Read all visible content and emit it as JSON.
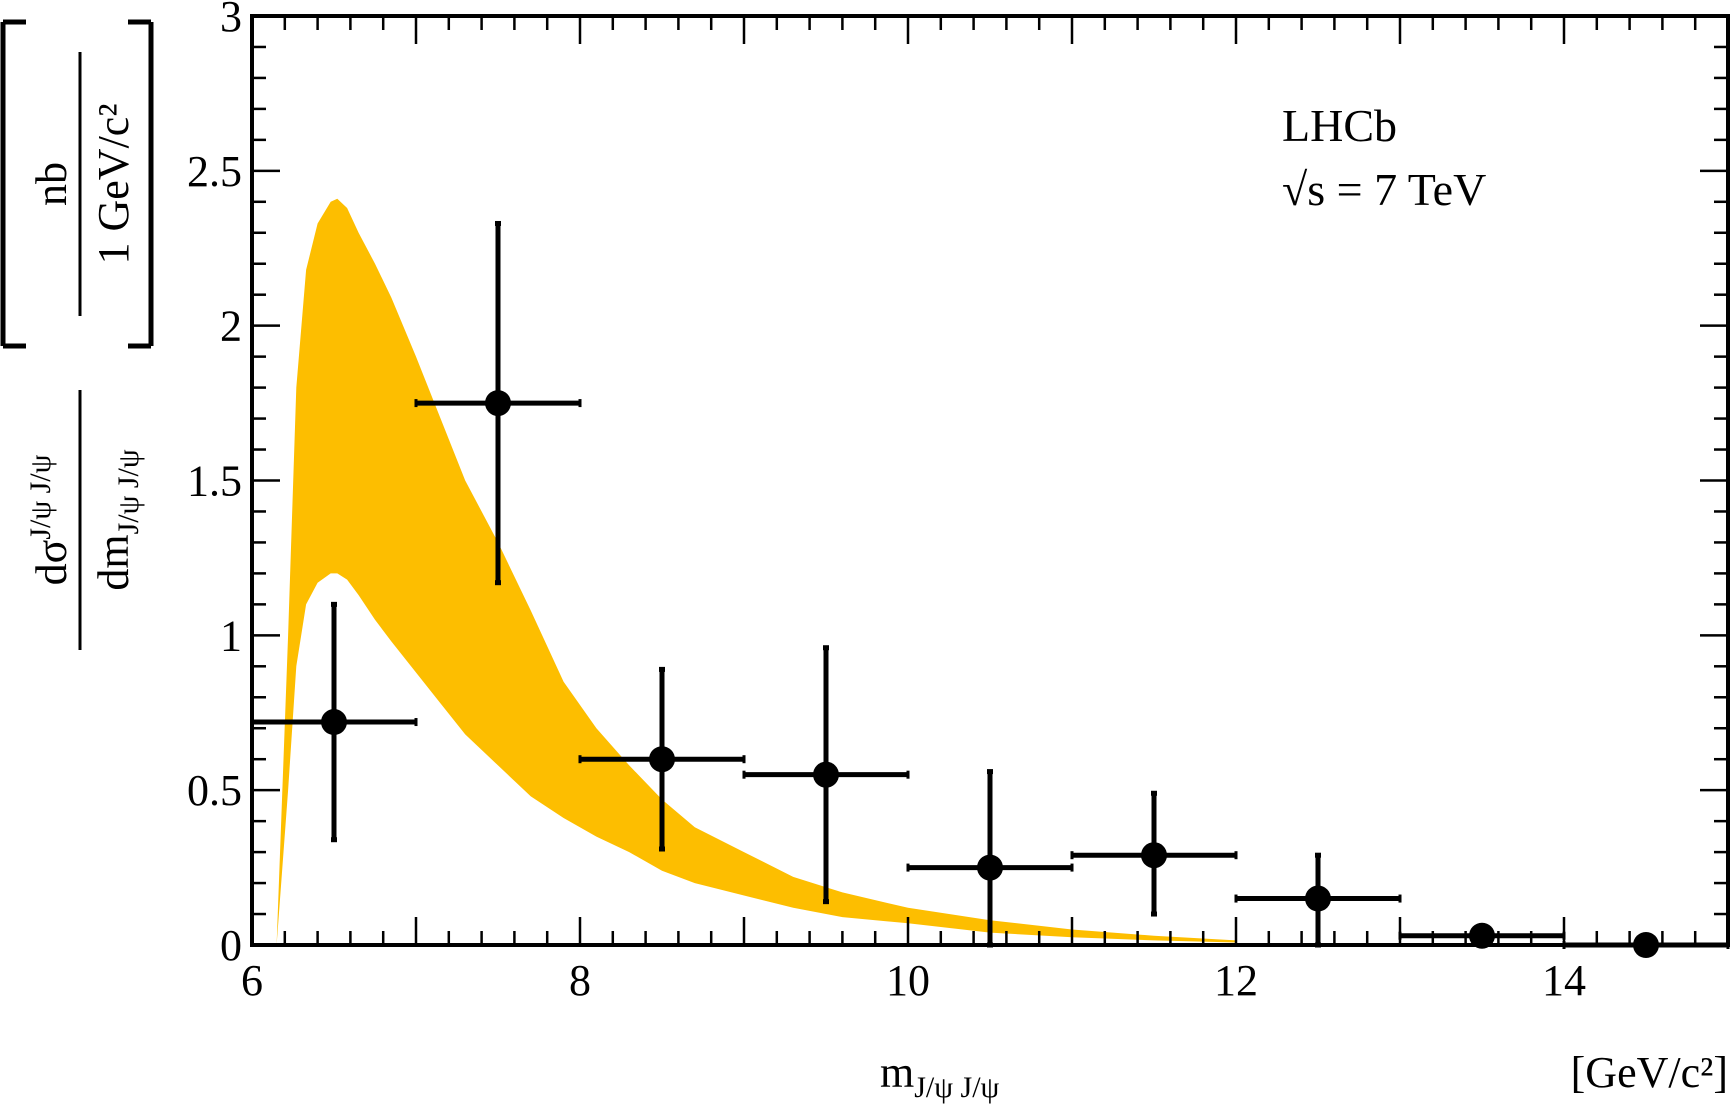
{
  "chart_data": {
    "type": "scatter",
    "title": "",
    "annotation": {
      "experiment": "LHCb",
      "energy": "√s = 7 TeV"
    },
    "xlabel": {
      "main": "m",
      "sub": "J/ψ J/ψ",
      "unit": "[GeV/c²]"
    },
    "ylabel": {
      "unit_num": "nb",
      "unit_den": "1 GeV/c²",
      "num": "dσ",
      "num_sup": "J/ψ J/ψ",
      "den": "dm",
      "den_sub": "J/ψ J/ψ"
    },
    "xlim": [
      6,
      15
    ],
    "ylim": [
      0,
      3
    ],
    "xticks": [
      6,
      8,
      10,
      12,
      14
    ],
    "yticks": [
      0,
      0.5,
      1,
      1.5,
      2,
      2.5,
      3
    ],
    "ytick_labels": [
      "0",
      "0.5",
      "1",
      "1.5",
      "2",
      "2.5",
      "3"
    ],
    "grid": false,
    "band_color": "#FDBE00",
    "point_color": "#000000",
    "data_points": [
      {
        "x": 6.5,
        "xlo": 6,
        "xhi": 7,
        "y": 0.72,
        "ylo": 0.34,
        "yhi": 1.1
      },
      {
        "x": 7.5,
        "xlo": 7,
        "xhi": 8,
        "y": 1.75,
        "ylo": 1.17,
        "yhi": 2.33
      },
      {
        "x": 8.5,
        "xlo": 8,
        "xhi": 9,
        "y": 0.6,
        "ylo": 0.31,
        "yhi": 0.89
      },
      {
        "x": 9.5,
        "xlo": 9,
        "xhi": 10,
        "y": 0.55,
        "ylo": 0.14,
        "yhi": 0.96
      },
      {
        "x": 10.5,
        "xlo": 10,
        "xhi": 11,
        "y": 0.25,
        "ylo": 0.0,
        "yhi": 0.56
      },
      {
        "x": 11.5,
        "xlo": 11,
        "xhi": 12,
        "y": 0.29,
        "ylo": 0.1,
        "yhi": 0.49
      },
      {
        "x": 12.5,
        "xlo": 12,
        "xhi": 13,
        "y": 0.15,
        "ylo": 0.0,
        "yhi": 0.29
      },
      {
        "x": 13.5,
        "xlo": 13,
        "xhi": 14,
        "y": 0.03,
        "ylo": 0.03,
        "yhi": 0.03
      },
      {
        "x": 14.5,
        "xlo": 14,
        "xhi": 15,
        "y": 0.0,
        "ylo": 0.0,
        "yhi": 0.0
      }
    ],
    "prediction_band": [
      {
        "x": 6.15,
        "lo": 0.0,
        "hi": 0.0
      },
      {
        "x": 6.22,
        "lo": 0.5,
        "hi": 1.0
      },
      {
        "x": 6.27,
        "lo": 0.9,
        "hi": 1.8
      },
      {
        "x": 6.33,
        "lo": 1.1,
        "hi": 2.18
      },
      {
        "x": 6.4,
        "lo": 1.17,
        "hi": 2.33
      },
      {
        "x": 6.48,
        "lo": 1.2,
        "hi": 2.4
      },
      {
        "x": 6.52,
        "lo": 1.2,
        "hi": 2.41
      },
      {
        "x": 6.58,
        "lo": 1.18,
        "hi": 2.38
      },
      {
        "x": 6.65,
        "lo": 1.13,
        "hi": 2.3
      },
      {
        "x": 6.75,
        "lo": 1.05,
        "hi": 2.2
      },
      {
        "x": 6.85,
        "lo": 0.98,
        "hi": 2.09
      },
      {
        "x": 7.0,
        "lo": 0.88,
        "hi": 1.9
      },
      {
        "x": 7.15,
        "lo": 0.78,
        "hi": 1.7
      },
      {
        "x": 7.3,
        "lo": 0.68,
        "hi": 1.5
      },
      {
        "x": 7.5,
        "lo": 0.58,
        "hi": 1.3
      },
      {
        "x": 7.7,
        "lo": 0.48,
        "hi": 1.08
      },
      {
        "x": 7.9,
        "lo": 0.41,
        "hi": 0.85
      },
      {
        "x": 8.1,
        "lo": 0.35,
        "hi": 0.7
      },
      {
        "x": 8.3,
        "lo": 0.3,
        "hi": 0.58
      },
      {
        "x": 8.5,
        "lo": 0.24,
        "hi": 0.47
      },
      {
        "x": 8.7,
        "lo": 0.2,
        "hi": 0.38
      },
      {
        "x": 9.0,
        "lo": 0.16,
        "hi": 0.3
      },
      {
        "x": 9.3,
        "lo": 0.12,
        "hi": 0.22
      },
      {
        "x": 9.6,
        "lo": 0.09,
        "hi": 0.17
      },
      {
        "x": 10.0,
        "lo": 0.07,
        "hi": 0.12
      },
      {
        "x": 10.5,
        "lo": 0.04,
        "hi": 0.08
      },
      {
        "x": 11.0,
        "lo": 0.025,
        "hi": 0.05
      },
      {
        "x": 11.5,
        "lo": 0.015,
        "hi": 0.03
      },
      {
        "x": 12.0,
        "lo": 0.008,
        "hi": 0.015
      }
    ]
  }
}
